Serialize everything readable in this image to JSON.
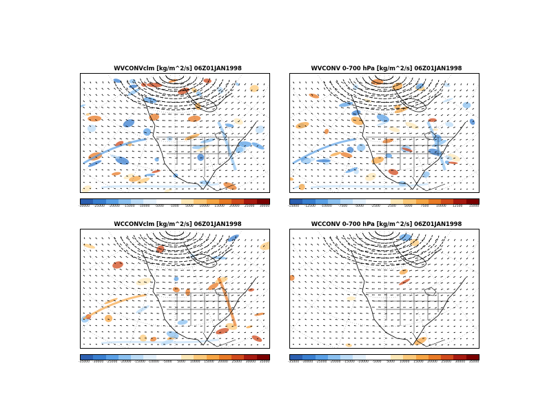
{
  "colors": {
    "scale": [
      "#2c5fb0",
      "#3a7fd0",
      "#5aa0e6",
      "#8ac0f0",
      "#bcdcf7",
      "#e3f0fb",
      "#ffffff",
      "#ffffff",
      "#fde8b8",
      "#fcc97a",
      "#f6a544",
      "#e87a26",
      "#d04a1c",
      "#a61a10",
      "#7a0000"
    ]
  },
  "panels": [
    {
      "id": "p1",
      "title": "WVCONVclm [kg/m^2/s] 06Z01JAN1998",
      "colorbar_labels": [
        "-30000",
        "-25000",
        "-20000",
        "-15000",
        "-10000",
        "-5000",
        "-1000",
        "5000",
        "10000",
        "15000",
        "20000",
        "25000",
        "30000"
      ],
      "shading": "blue_orange_mixed"
    },
    {
      "id": "p2",
      "title": "WVCONV 0-700 hPa [kg/m^2/s] 06Z01JAN1998",
      "colorbar_labels": [
        "-15000",
        "-12500",
        "-10000",
        "-7500",
        "-5000",
        "-2500",
        "2500",
        "5000",
        "7500",
        "10000",
        "12500",
        "15000"
      ],
      "shading": "blue_orange_mixed"
    },
    {
      "id": "p3",
      "title": "WCCONVclm [kg/m^2/s] 06Z01JAN1998",
      "colorbar_labels": [
        "-35000",
        "-30000",
        "-25000",
        "-20000",
        "-15000",
        "-10000",
        "-5000",
        "5000",
        "10000",
        "15000",
        "20000",
        "25000",
        "30000",
        "35000"
      ],
      "shading": "orange_dominant"
    },
    {
      "id": "p4",
      "title": "WCCONV 0-700 hPa [kg/m^2/s] 06Z01JAN1998",
      "colorbar_labels": [
        "-35000",
        "-30000",
        "-25000",
        "-20000",
        "-15000",
        "-10000",
        "-5000",
        "5000",
        "10000",
        "15000",
        "20000",
        "25000",
        "30000",
        "35000"
      ],
      "shading": "sparse"
    }
  ]
}
